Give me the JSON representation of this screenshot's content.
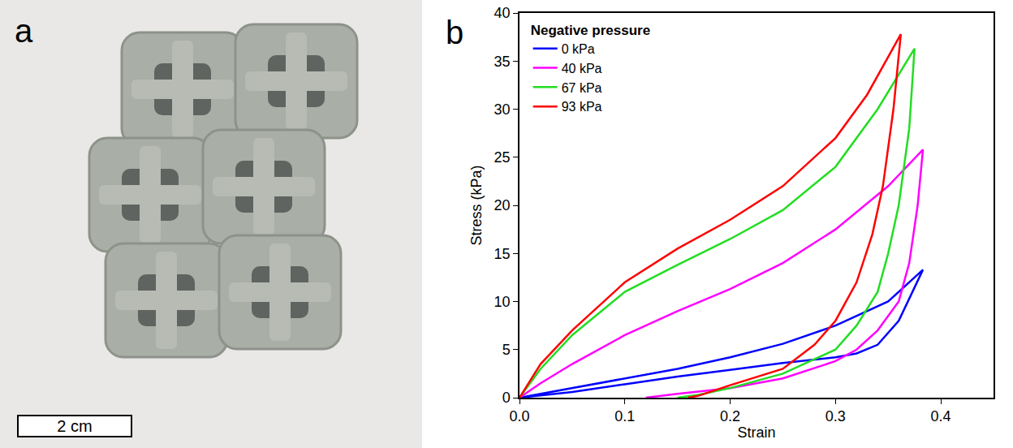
{
  "chart_data": {
    "type": "line",
    "panel_label": "b",
    "x_label": "Strain",
    "y_label": "Stress (kPa)",
    "legend_title": "Negative pressure",
    "legend": "upper left",
    "grid": false,
    "xlim": [
      0,
      0.45
    ],
    "xticks": [
      {
        "value": 0,
        "label": "0.0"
      },
      0.1,
      0.2,
      0.3,
      0.4
    ],
    "ylim": [
      0,
      40
    ],
    "yticks": [
      0,
      5,
      10,
      15,
      20,
      25,
      30,
      35,
      40
    ],
    "series": [
      {
        "name": "0 kPa",
        "color": "#0000ff",
        "x": [
          0,
          0.05,
          0.1,
          0.15,
          0.2,
          0.25,
          0.3,
          0.35,
          0.383,
          0.375,
          0.36,
          0.34,
          0.32,
          0.3,
          0.25,
          0.2,
          0.15,
          0.1,
          0.05,
          0
        ],
        "values": [
          0,
          1.0,
          2.0,
          3.0,
          4.2,
          5.6,
          7.5,
          10.0,
          13.3,
          11.5,
          8.0,
          5.5,
          4.6,
          4.2,
          3.6,
          2.9,
          2.2,
          1.4,
          0.6,
          0
        ]
      },
      {
        "name": "40 kPa",
        "color": "#ff00ff",
        "x": [
          0,
          0.02,
          0.05,
          0.1,
          0.15,
          0.2,
          0.25,
          0.3,
          0.35,
          0.383,
          0.378,
          0.37,
          0.36,
          0.34,
          0.32,
          0.3,
          0.25,
          0.2,
          0.15,
          0.12
        ],
        "values": [
          0,
          1.5,
          3.5,
          6.5,
          9.0,
          11.3,
          14.0,
          17.5,
          22.0,
          25.8,
          20.0,
          14.0,
          10.0,
          7.0,
          5.0,
          3.8,
          2.0,
          1.0,
          0.4,
          0
        ]
      },
      {
        "name": "67 kPa",
        "color": "#22dd22",
        "x": [
          0,
          0.02,
          0.05,
          0.1,
          0.15,
          0.2,
          0.25,
          0.3,
          0.34,
          0.375,
          0.37,
          0.36,
          0.35,
          0.34,
          0.32,
          0.3,
          0.25,
          0.2,
          0.17,
          0.15
        ],
        "values": [
          0,
          3.0,
          6.5,
          11.0,
          13.8,
          16.5,
          19.5,
          24.0,
          30.0,
          36.3,
          28.0,
          20.0,
          15.0,
          11.0,
          7.5,
          5.0,
          2.5,
          1.0,
          0.3,
          0
        ]
      },
      {
        "name": "93 kPa",
        "color": "#ff0000",
        "x": [
          0,
          0.02,
          0.05,
          0.1,
          0.15,
          0.2,
          0.25,
          0.3,
          0.33,
          0.362,
          0.355,
          0.345,
          0.335,
          0.32,
          0.3,
          0.28,
          0.25,
          0.2,
          0.17,
          0.16
        ],
        "values": [
          0,
          3.5,
          7.0,
          12.0,
          15.5,
          18.5,
          22.0,
          27.0,
          31.5,
          37.8,
          30.0,
          22.0,
          17.0,
          12.0,
          8.0,
          5.5,
          3.0,
          1.3,
          0.2,
          0
        ]
      }
    ]
  },
  "photo": {
    "panel_label": "a",
    "scale_bar": "2 cm"
  }
}
